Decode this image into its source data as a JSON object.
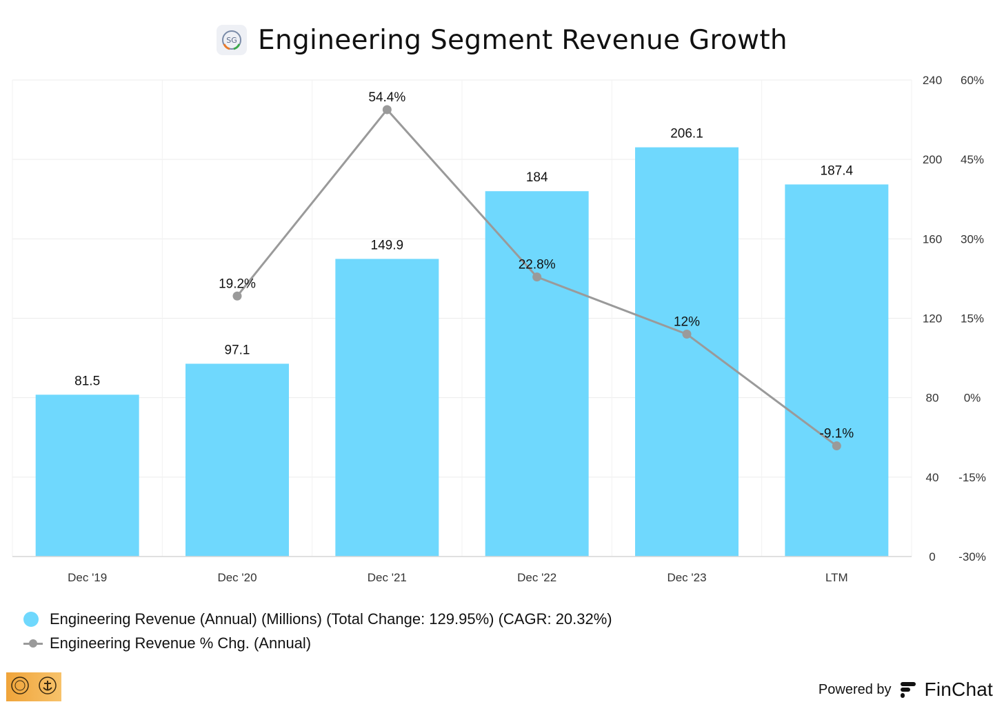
{
  "header": {
    "title": "Engineering Segment Revenue Growth",
    "logo_text": "SG"
  },
  "chart_data": {
    "type": "bar",
    "title": "Engineering Segment Revenue Growth",
    "categories": [
      "Dec '19",
      "Dec '20",
      "Dec '21",
      "Dec '22",
      "Dec '23",
      "LTM"
    ],
    "series": [
      {
        "name": "Engineering Revenue (Annual) (Millions) (Total Change: 129.95%) (CAGR: 20.32%)",
        "type": "bar",
        "axis": "left",
        "values": [
          81.5,
          97.1,
          149.9,
          184,
          206.1,
          187.4
        ],
        "labels": [
          "81.5",
          "97.1",
          "149.9",
          "184",
          "206.1",
          "187.4"
        ],
        "color": "#6fd8fd"
      },
      {
        "name": "Engineering Revenue % Chg. (Annual)",
        "type": "line",
        "axis": "right",
        "values": [
          null,
          19.2,
          54.4,
          22.8,
          12,
          -9.1
        ],
        "labels": [
          "",
          "19.2%",
          "54.4%",
          "22.8%",
          "12%",
          "-9.1%"
        ],
        "color": "#9a9a9a"
      }
    ],
    "y_left": {
      "ylim": [
        0,
        240
      ],
      "ticks": [
        "0",
        "40",
        "80",
        "120",
        "160",
        "200",
        "240"
      ]
    },
    "y_right": {
      "ylim": [
        -30,
        60
      ],
      "ticks": [
        "-30%",
        "-15%",
        "0%",
        "15%",
        "30%",
        "45%",
        "60%"
      ]
    },
    "grid": true,
    "legend_position": "bottom-left"
  },
  "legend": {
    "items": [
      "Engineering Revenue (Annual) (Millions) (Total Change: 129.95%) (CAGR: 20.32%)",
      "Engineering Revenue % Chg. (Annual)"
    ]
  },
  "footer": {
    "powered_by": "Powered by",
    "brand": "FinChat"
  }
}
